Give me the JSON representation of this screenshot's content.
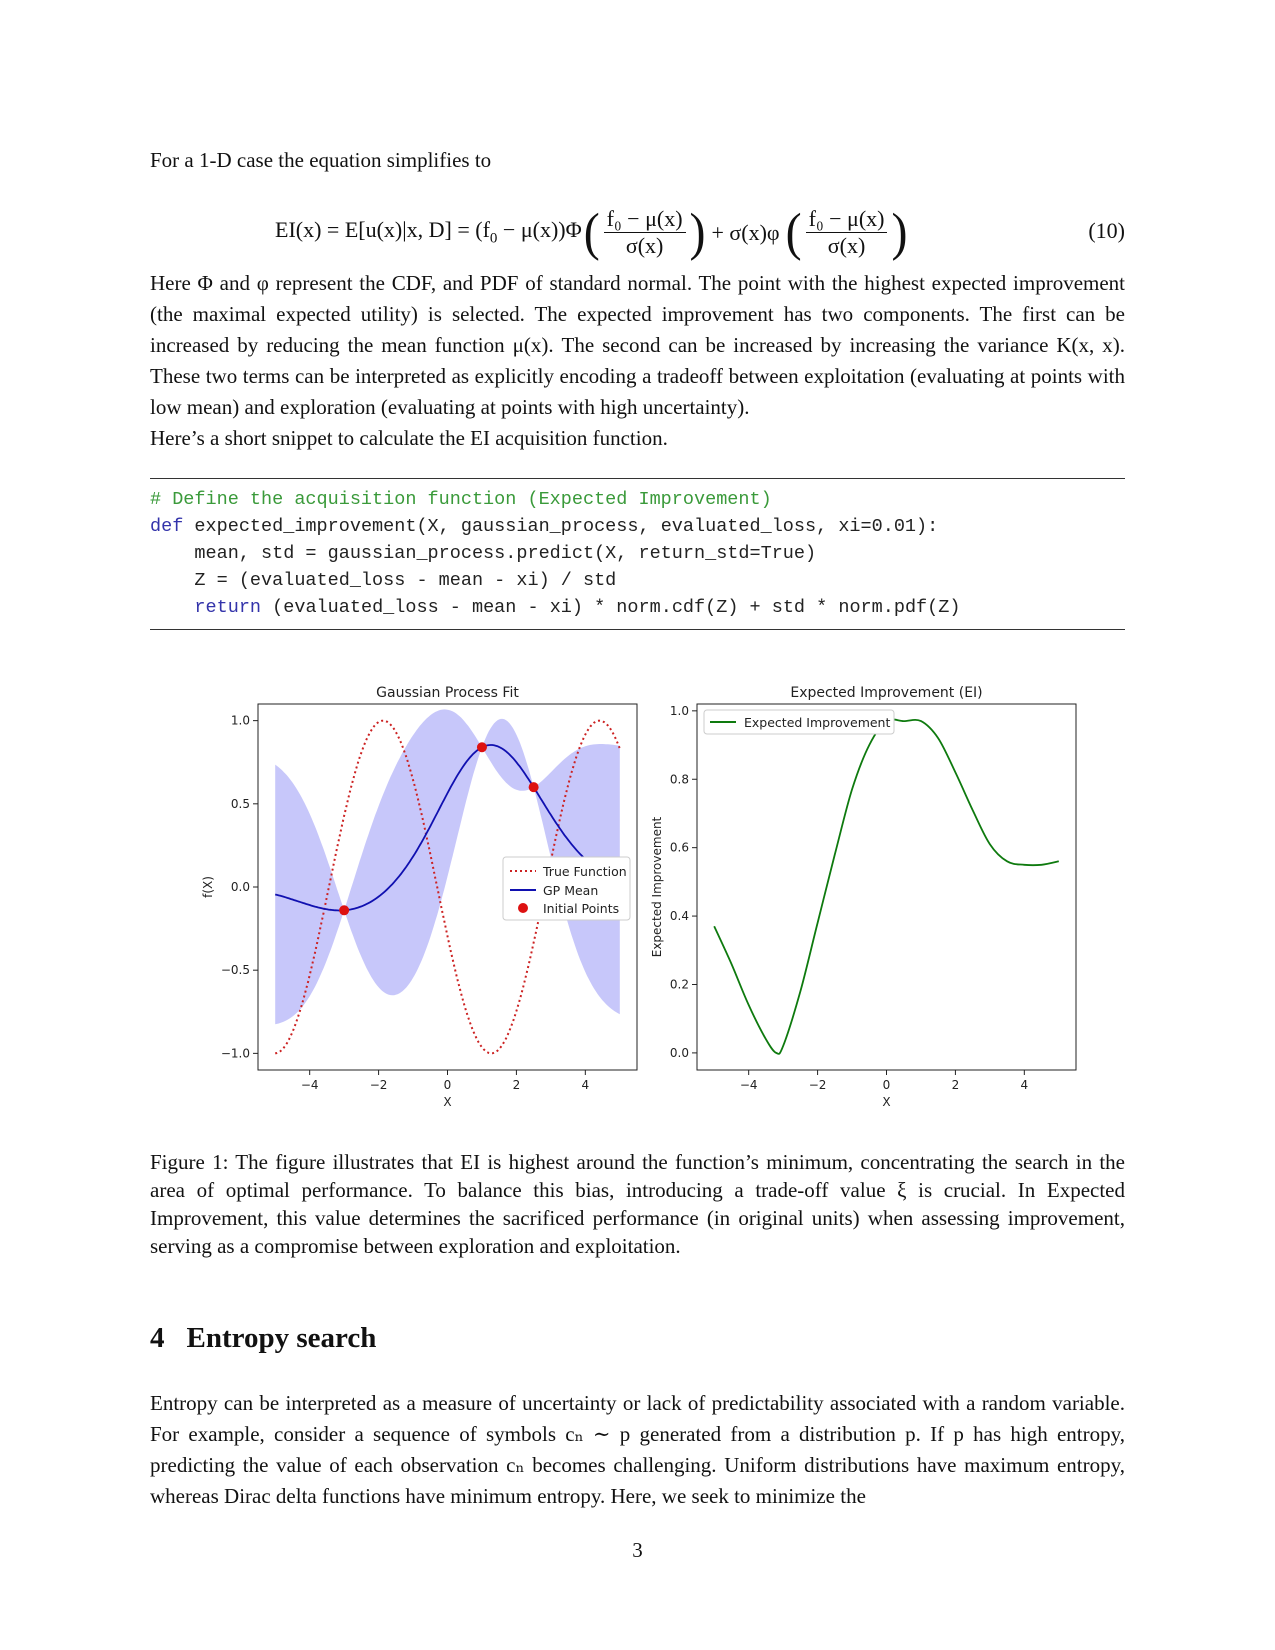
{
  "intro": "For a 1-D case the equation simplifies to",
  "equation": {
    "lhs": "EI(x) = E[u(x)|x, D] = (f",
    "lhs_sub": "0",
    "lhs2": " − μ(x))Φ",
    "frac_num": "f₀ − μ(x)",
    "frac_den": "σ(x)",
    "mid": "+ σ(x)φ",
    "number": "(10)"
  },
  "paragraph1": "Here Φ and φ represent the CDF, and PDF of standard normal. The point with the highest expected improvement (the maximal expected utility) is selected. The expected improvement has two components. The first can be increased by reducing the mean function μ(x). The second can be increased by increasing the variance K(x, x). These two terms can be interpreted as explicitly encoding a tradeoff between exploitation (evaluating at points with low mean) and exploration (evaluating at points with high uncertainty).",
  "paragraph2": "Here’s a short snippet to calculate the EI acquisition function.",
  "code": {
    "comment": "# Define the acquisition function (Expected Improvement)",
    "kw_def": "def",
    "line1_rest": " expected_improvement(X, gaussian_process, evaluated_loss, xi=0.01):",
    "line2": "    mean, std = gaussian_process.predict(X, return_std=True)",
    "line3": "    Z = (evaluated_loss - mean - xi) / std",
    "kw_return": "return",
    "line4_rest": " (evaluated_loss - mean - xi) * norm.cdf(Z) + std * norm.pdf(Z)"
  },
  "chart_data": [
    {
      "type": "line",
      "title": "Gaussian Process Fit",
      "xlabel": "X",
      "ylabel": "f(X)",
      "xlim": [
        -5.5,
        5.5
      ],
      "ylim": [
        -1.1,
        1.1
      ],
      "xticks": [
        "−4",
        "−2",
        "0",
        "2",
        "4"
      ],
      "yticks": [
        "−1.0",
        "−0.5",
        "0.0",
        "0.5",
        "1.0"
      ],
      "legend": [
        "True Function",
        "GP Mean",
        "Initial Points"
      ],
      "legend_position": "center-right",
      "initial_points": [
        [
          -3,
          -0.14
        ],
        [
          1,
          0.84
        ],
        [
          2.5,
          0.6
        ]
      ],
      "colors": {
        "true": "#cc2222",
        "mean": "#1010b0",
        "band": "#c4c4fa",
        "points": "#dd1111"
      }
    },
    {
      "type": "line",
      "title": "Expected Improvement (EI)",
      "xlabel": "X",
      "ylabel": "Expected Improvement",
      "xlim": [
        -5.5,
        5.5
      ],
      "ylim": [
        -0.05,
        1.02
      ],
      "xticks": [
        "−4",
        "−2",
        "0",
        "2",
        "4"
      ],
      "yticks": [
        "0.0",
        "0.2",
        "0.4",
        "0.6",
        "0.8",
        "1.0"
      ],
      "legend": [
        "Expected Improvement"
      ],
      "legend_position": "top-left",
      "series": [
        {
          "name": "Expected Improvement",
          "x": [
            -5,
            -4.5,
            -4,
            -3.5,
            -3.2,
            -3,
            -2.5,
            -2,
            -1.5,
            -1,
            -0.5,
            0,
            0.5,
            1,
            1.5,
            2,
            2.5,
            3,
            3.5,
            4,
            4.5,
            5
          ],
          "y": [
            0.37,
            0.26,
            0.14,
            0.04,
            0.0,
            0.02,
            0.18,
            0.38,
            0.58,
            0.77,
            0.9,
            0.97,
            0.97,
            0.97,
            0.92,
            0.82,
            0.71,
            0.61,
            0.56,
            0.55,
            0.55,
            0.56
          ]
        }
      ],
      "color": "#0e7a0e"
    }
  ],
  "caption": "Figure 1: The figure illustrates that EI is highest around the function’s minimum, concentrating the search in the area of optimal performance. To balance this bias, introducing a trade-off value ξ is crucial. In Expected Improvement, this value determines the sacrificed performance (in original units) when assessing improvement, serving as a compromise between exploration and exploitation.",
  "section": {
    "number": "4",
    "title": "Entropy search"
  },
  "paragraph3": "Entropy can be interpreted as a measure of uncertainty or lack of predictability associated with a random variable. For example, consider a sequence of symbols cₙ ∼ p generated from a distribution p. If p has high entropy, predicting the value of each observation cₙ becomes challenging. Uniform distributions have maximum entropy, whereas Dirac delta functions have minimum entropy. Here, we seek to minimize the",
  "page_number": "3"
}
